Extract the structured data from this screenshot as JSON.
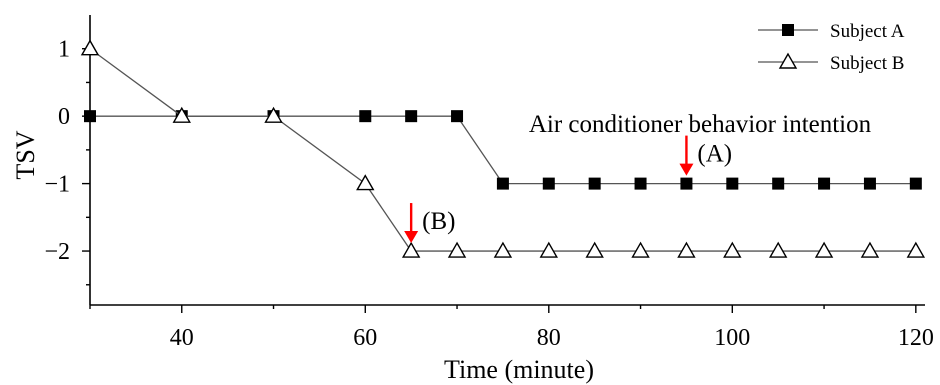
{
  "chart_data": {
    "type": "line",
    "xlabel": "Time (minute)",
    "ylabel": "TSV",
    "xlim": [
      30,
      121
    ],
    "ylim": [
      -2.8,
      1.5
    ],
    "xticks": [
      40,
      60,
      80,
      100,
      120
    ],
    "yticks": [
      1,
      0,
      -1,
      -2
    ],
    "ytick_labels": [
      "1",
      "0",
      "−1",
      "−2"
    ],
    "grid": false,
    "legend_position": "top-right",
    "series": [
      {
        "name": "Subject A",
        "marker": "filled-square",
        "color": "#000000",
        "x": [
          30,
          40,
          50,
          60,
          65,
          70,
          75,
          80,
          85,
          90,
          95,
          100,
          105,
          110,
          115,
          120
        ],
        "y": [
          0,
          0,
          0,
          0,
          0,
          0,
          -1,
          -1,
          -1,
          -1,
          -1,
          -1,
          -1,
          -1,
          -1,
          -1
        ]
      },
      {
        "name": "Subject B",
        "marker": "open-triangle",
        "color": "#000000",
        "x": [
          30,
          40,
          50,
          60,
          65,
          70,
          75,
          80,
          85,
          90,
          95,
          100,
          105,
          110,
          115,
          120
        ],
        "y": [
          1,
          0,
          0,
          -1,
          -2,
          -2,
          -2,
          -2,
          -2,
          -2,
          -2,
          -2,
          -2,
          -2,
          -2,
          -2
        ]
      }
    ],
    "annotations": [
      {
        "text": "Air conditioner behavior intention",
        "kind": "label"
      },
      {
        "text": "(A)",
        "kind": "arrow",
        "x": 95,
        "y": -1,
        "arrow_color": "#ff0000"
      },
      {
        "text": "(B)",
        "kind": "arrow",
        "x": 65,
        "y": -2,
        "arrow_color": "#ff0000"
      }
    ]
  }
}
